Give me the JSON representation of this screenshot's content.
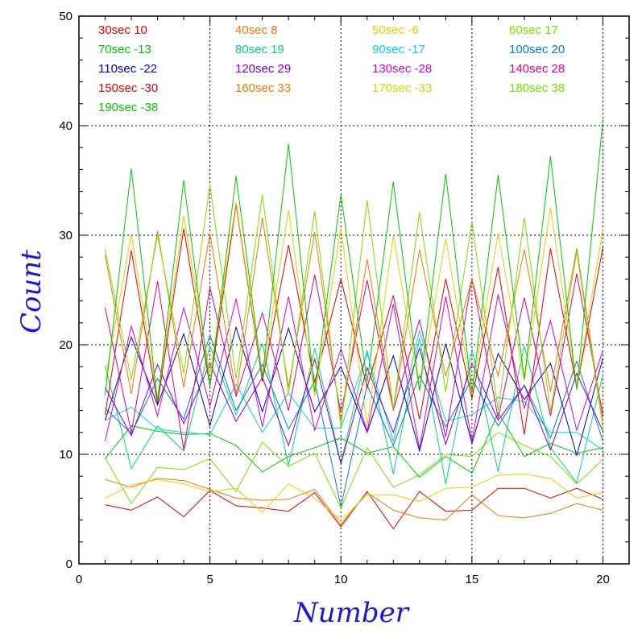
{
  "chart_data": {
    "type": "line",
    "title": "",
    "xlabel": "Number",
    "ylabel": "Count",
    "xlim": [
      0,
      21
    ],
    "ylim": [
      0,
      50
    ],
    "xticks": [
      0,
      5,
      10,
      15,
      20
    ],
    "yticks": [
      0,
      10,
      20,
      30,
      40,
      50
    ],
    "grid": true,
    "legend_position": "top (inside plot, 4 columns)",
    "x": [
      1,
      2,
      3,
      4,
      5,
      6,
      7,
      8,
      9,
      10,
      11,
      12,
      13,
      14,
      15,
      16,
      17,
      18,
      19,
      20
    ],
    "series": [
      {
        "name": "30sec 10",
        "color": "#e00000",
        "values": [
          5.4,
          4.9,
          6.1,
          4.3,
          6.7,
          5.3,
          5.1,
          4.8,
          6.5,
          3.4,
          6.6,
          3.2,
          6.6,
          4.8,
          4.9,
          6.9,
          6.9,
          6.0,
          6.9,
          5.9
        ]
      },
      {
        "name": "40sec 8",
        "color": "#f07800",
        "values": [
          7.7,
          7.0,
          7.8,
          7.6,
          6.8,
          6.0,
          5.8,
          5.9,
          6.8,
          3.6,
          6.5,
          4.9,
          4.2,
          4.0,
          6.3,
          4.4,
          4.2,
          4.6,
          5.5,
          4.9
        ]
      },
      {
        "name": "50sec -6",
        "color": "#e0d000",
        "values": [
          6.0,
          7.2,
          7.7,
          7.3,
          6.6,
          6.9,
          4.7,
          7.3,
          6.0,
          4.0,
          6.3,
          6.3,
          5.7,
          6.9,
          7.0,
          8.1,
          8.2,
          7.8,
          6.0,
          6.5
        ]
      },
      {
        "name": "60sec 17",
        "color": "#78e000",
        "values": [
          9.7,
          5.5,
          8.8,
          8.6,
          9.6,
          6.6,
          11.1,
          8.9,
          10.1,
          5.1,
          10.6,
          7.0,
          8.1,
          10.0,
          9.8,
          12.0,
          10.8,
          9.8,
          7.3,
          9.5
        ]
      },
      {
        "name": "70sec -13",
        "color": "#00c800",
        "values": [
          9.6,
          12.6,
          12.1,
          11.8,
          11.9,
          10.8,
          8.4,
          9.8,
          10.6,
          11.5,
          10.1,
          10.7,
          7.9,
          9.8,
          8.3,
          13.8,
          9.8,
          11.0,
          10.1,
          10.6
        ]
      },
      {
        "name": "80sec 19",
        "color": "#00d878",
        "values": [
          18.1,
          8.7,
          12.6,
          10.3,
          19.9,
          13.6,
          20.1,
          9.0,
          19.7,
          9.2,
          19.5,
          8.2,
          20.6,
          7.3,
          19.6,
          8.4,
          19.9,
          10.6,
          7.4,
          17.3
        ]
      },
      {
        "name": "90sec -17",
        "color": "#00d8d8",
        "values": [
          13.1,
          14.3,
          12.3,
          12.0,
          11.8,
          16.4,
          12.0,
          15.6,
          12.4,
          12.4,
          19.2,
          11.2,
          21.3,
          13.0,
          13.6,
          15.2,
          14.8,
          12.0,
          12.0,
          10.4
        ]
      },
      {
        "name": "100sec 20",
        "color": "#0078e0",
        "values": [
          14.2,
          11.9,
          16.9,
          13.2,
          20.9,
          14.0,
          18.2,
          12.3,
          16.7,
          5.2,
          16.3,
          10.8,
          17.2,
          12.5,
          16.9,
          12.6,
          16.3,
          11.5,
          18.5,
          11.2
        ]
      },
      {
        "name": "110sec -22",
        "color": "#0000c8",
        "values": [
          13.1,
          20.7,
          14.5,
          21.0,
          12.6,
          21.6,
          13.9,
          21.5,
          13.9,
          18.0,
          12.0,
          19.0,
          10.3,
          20.1,
          11.0,
          19.2,
          15.0,
          18.3,
          9.9,
          18.8
        ]
      },
      {
        "name": "120sec 29",
        "color": "#7800d8",
        "values": [
          16.1,
          11.7,
          18.2,
          12.8,
          18.3,
          13.0,
          17.0,
          10.8,
          18.7,
          9.1,
          17.9,
          12.0,
          19.7,
          10.9,
          18.3,
          13.1,
          16.3,
          10.4,
          17.4,
          12.1
        ]
      },
      {
        "name": "130sec -28",
        "color": "#d800d8",
        "values": [
          11.2,
          21.7,
          13.5,
          23.4,
          14.4,
          24.2,
          12.5,
          24.4,
          12.2,
          19.6,
          12.1,
          23.7,
          10.5,
          24.4,
          11.2,
          24.6,
          14.2,
          22.2,
          12.2,
          19.5
        ]
      },
      {
        "name": "140sec 28",
        "color": "#e0007a",
        "values": [
          23.4,
          12.0,
          25.8,
          10.4,
          25.2,
          15.3,
          22.9,
          14.0,
          26.4,
          13.8,
          25.9,
          14.0,
          22.3,
          11.6,
          26.1,
          13.3,
          24.3,
          13.5,
          26.5,
          13.6
        ]
      },
      {
        "name": "150sec -30",
        "color": "#e00000",
        "values": [
          13.6,
          28.6,
          14.6,
          30.6,
          16.2,
          32.8,
          16.7,
          29.1,
          16.6,
          26.0,
          16.1,
          24.5,
          13.2,
          26.0,
          15.1,
          27.1,
          11.8,
          28.8,
          16.1,
          28.9
        ]
      },
      {
        "name": "160sec 33",
        "color": "#f07800",
        "values": [
          28.2,
          15.5,
          30.4,
          16.1,
          30.2,
          15.5,
          31.6,
          16.1,
          30.3,
          13.0,
          27.8,
          14.1,
          28.7,
          17.1,
          26.0,
          17.1,
          28.7,
          15.7,
          28.8,
          13.0
        ]
      },
      {
        "name": "170sec -33",
        "color": "#e0d000",
        "values": [
          16.7,
          30.1,
          15.1,
          31.8,
          17.3,
          33.0,
          17.0,
          32.3,
          15.3,
          30.7,
          12.6,
          30.0,
          15.8,
          29.7,
          15.6,
          30.2,
          16.7,
          32.5,
          16.2,
          30.6
        ]
      },
      {
        "name": "180sec 38",
        "color": "#78e000",
        "values": [
          28.7,
          16.8,
          30.0,
          17.4,
          34.6,
          16.9,
          33.7,
          15.5,
          32.2,
          12.5,
          33.2,
          14.1,
          32.1,
          15.7,
          31.2,
          14.0,
          31.6,
          13.9,
          28.5,
          12.4
        ]
      },
      {
        "name": "190sec -38",
        "color": "#00c800",
        "values": [
          15.4,
          36.1,
          14.8,
          35.0,
          16.2,
          35.4,
          17.0,
          38.3,
          15.7,
          33.7,
          16.6,
          34.9,
          15.8,
          35.6,
          15.6,
          35.5,
          16.9,
          37.2,
          15.9,
          40.6
        ]
      }
    ]
  }
}
